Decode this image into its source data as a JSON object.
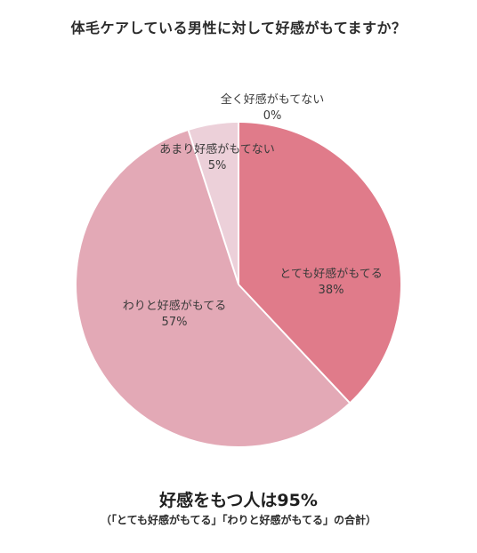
{
  "chart_data": {
    "type": "pie",
    "title": "体毛ケアしている男性に対して好感がもてますか？",
    "slices": [
      {
        "label": "とても好感がもてる",
        "value": 38,
        "value_label": "38%",
        "color": "#e07b8a"
      },
      {
        "label": "わりと好感がもてる",
        "value": 57,
        "value_label": "57%",
        "color": "#e3a9b6"
      },
      {
        "label": "あまり好感がもてない",
        "value": 5,
        "value_label": "5%",
        "color": "#ecd0d9"
      },
      {
        "label": "全く好感がもてない",
        "value": 0,
        "value_label": "0%",
        "color": "#f4e2e7"
      }
    ],
    "start": "12 o'clock",
    "direction": "clockwise"
  },
  "summary": {
    "headline": "好感をもつ人は95%",
    "note": "（「とても好感がもてる」「わりと好感がもてる」の合計）"
  }
}
